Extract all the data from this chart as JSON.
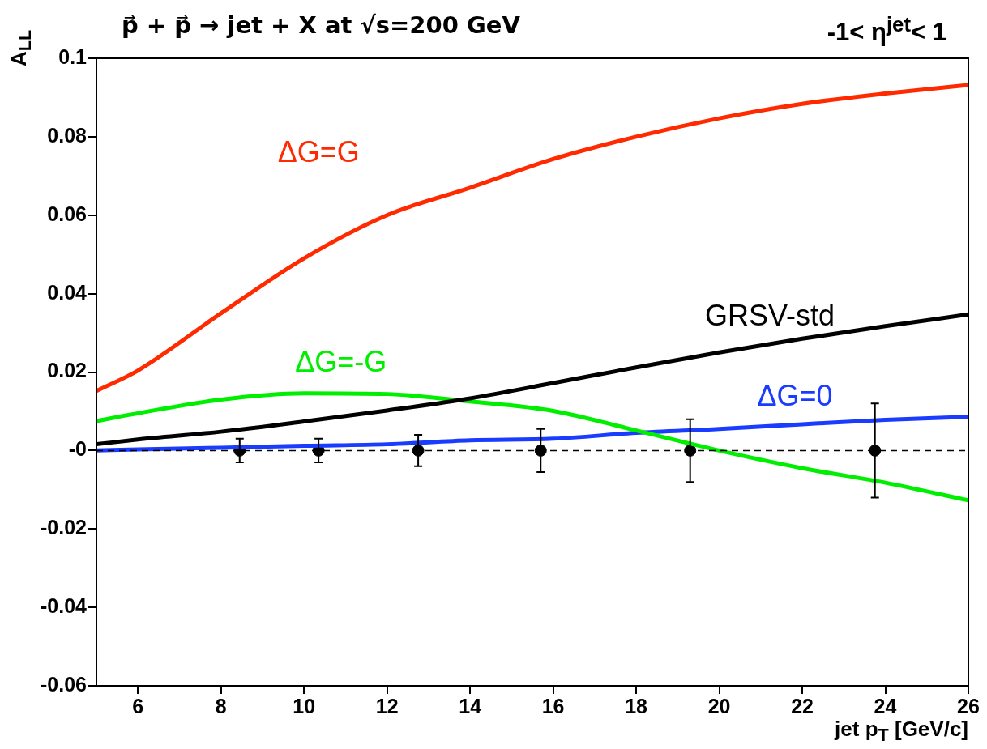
{
  "chart_data": {
    "type": "line",
    "title": "p⃗ + p⃗ → jet + X at √s=200 GeV",
    "annotations": [
      "-1< η$^{jet}$< 1"
    ],
    "xlabel": "jet p$_{T}$ [GeV/c]",
    "ylabel": "A$_{LL}$",
    "xlim": [
      5,
      26
    ],
    "xticks": [
      6,
      8,
      10,
      12,
      14,
      16,
      18,
      20,
      22,
      24,
      26
    ],
    "ylim": [
      -0.06,
      0.1
    ],
    "yticks": [
      -0.06,
      -0.04,
      -0.02,
      {
        "value": 0,
        "label": "-0"
      },
      0.02,
      0.04,
      0.06,
      0.08,
      0.1
    ],
    "grid": false,
    "legend": false,
    "line_style": "solid",
    "marker": "none",
    "x": [
      5,
      6,
      8,
      10,
      12,
      14,
      16,
      18,
      20,
      22,
      24,
      26
    ],
    "series": [
      {
        "name": "ΔG=G",
        "color": "#ff2a00",
        "values": [
          0.0152,
          0.0204,
          0.035,
          0.049,
          0.06,
          0.067,
          0.0743,
          0.08,
          0.0847,
          0.0884,
          0.091,
          0.0932
        ]
      },
      {
        "name": "GRSV-std",
        "color": "#000000",
        "values": [
          0.0016,
          0.0028,
          0.0048,
          0.0074,
          0.0102,
          0.0133,
          0.0172,
          0.0212,
          0.025,
          0.0285,
          0.0317,
          0.0347
        ]
      },
      {
        "name": "ΔG=-G",
        "color": "#00ee00",
        "values": [
          0.0075,
          0.0095,
          0.013,
          0.0146,
          0.0144,
          0.0125,
          0.0101,
          0.0051,
          0,
          -0.0045,
          -0.0082,
          -0.0127
        ]
      },
      {
        "name": "ΔG=0",
        "color": "#1a3cff",
        "values": [
          0,
          0.0003,
          0.0007,
          0.0012,
          0.0016,
          0.0026,
          0.003,
          0.0045,
          0.0055,
          0.0067,
          0.0078,
          0.0086
        ]
      },
      {
        "type": "scatter",
        "marker": "circle",
        "color": "#000000",
        "x": [
          8.45,
          10.35,
          12.75,
          15.7,
          19.3,
          23.75
        ],
        "values": [
          0,
          0,
          0,
          0,
          0,
          0
        ],
        "errors": [
          0.003,
          0.003,
          0.004,
          0.0055,
          0.008,
          0.012
        ]
      }
    ],
    "ref_lines": [
      {
        "axis": "y",
        "value": 0,
        "color": "#000000",
        "line_style": "dashed"
      }
    ]
  }
}
